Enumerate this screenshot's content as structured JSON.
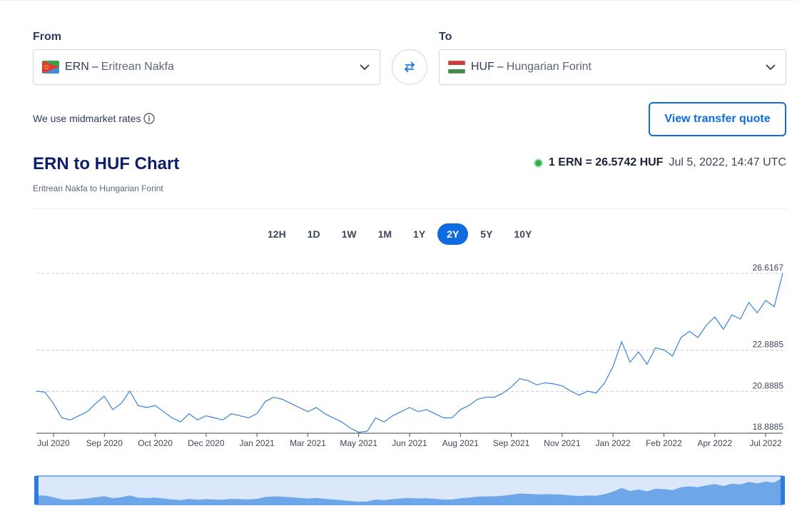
{
  "converter": {
    "from_label": "From",
    "to_label": "To",
    "from": {
      "code": "ERN",
      "dash": "–",
      "name": "Eritrean Nakfa"
    },
    "to": {
      "code": "HUF",
      "dash": "–",
      "name": "Hungarian Forint"
    },
    "midmarket_text": "We use midmarket rates",
    "quote_button": "View transfer quote"
  },
  "header": {
    "title": "ERN to HUF Chart",
    "subtitle": "Eritrean Nakfa to Hungarian Forint",
    "rate": "1 ERN = 26.5742 HUF",
    "timestamp": "Jul 5, 2022, 14:47 UTC"
  },
  "ranges": [
    "12H",
    "1D",
    "1W",
    "1M",
    "1Y",
    "2Y",
    "5Y",
    "10Y"
  ],
  "active_range": "2Y",
  "colors": {
    "accent": "#0e6ce0",
    "line": "#3b82d6",
    "navigator_fill": "#5a9ae6",
    "live_dot": "#2cb34a"
  },
  "chart_data": {
    "type": "line",
    "title": "",
    "xlabel": "",
    "ylabel": "",
    "ylim": [
      18.8885,
      26.6167
    ],
    "yticks": [
      "26.6167",
      "22.8885",
      "20.8885",
      "18.8885"
    ],
    "xticks": [
      "Jul 2020",
      "Sep 2020",
      "Oct 2020",
      "Dec 2020",
      "Jan 2021",
      "Mar 2021",
      "May 2021",
      "Jun 2021",
      "Aug 2021",
      "Sep 2021",
      "Nov 2021",
      "Jan 2022",
      "Feb 2022",
      "Apr 2022",
      "Jul 2022"
    ],
    "series": [
      {
        "values": [
          20.9,
          20.85,
          20.3,
          19.6,
          19.5,
          19.7,
          19.9,
          20.3,
          20.65,
          20.0,
          20.3,
          20.9,
          20.2,
          20.1,
          20.2,
          19.9,
          19.6,
          19.4,
          19.8,
          19.5,
          19.7,
          19.6,
          19.5,
          19.8,
          19.7,
          19.6,
          19.8,
          20.4,
          20.6,
          20.5,
          20.3,
          20.1,
          19.9,
          20.1,
          19.8,
          19.6,
          19.4,
          19.1,
          18.9,
          18.95,
          19.6,
          19.4,
          19.7,
          19.9,
          20.1,
          19.9,
          20.0,
          19.8,
          19.6,
          19.6,
          20.0,
          20.2,
          20.5,
          20.6,
          20.6,
          20.8,
          21.1,
          21.5,
          21.4,
          21.2,
          21.3,
          21.25,
          21.15,
          20.9,
          20.7,
          20.9,
          20.8,
          21.3,
          22.1,
          23.3,
          22.3,
          22.8,
          22.2,
          23.0,
          22.9,
          22.6,
          23.5,
          23.8,
          23.5,
          24.1,
          24.5,
          23.9,
          24.6,
          24.4,
          25.2,
          24.7,
          25.3,
          25.0,
          26.62
        ]
      }
    ]
  }
}
